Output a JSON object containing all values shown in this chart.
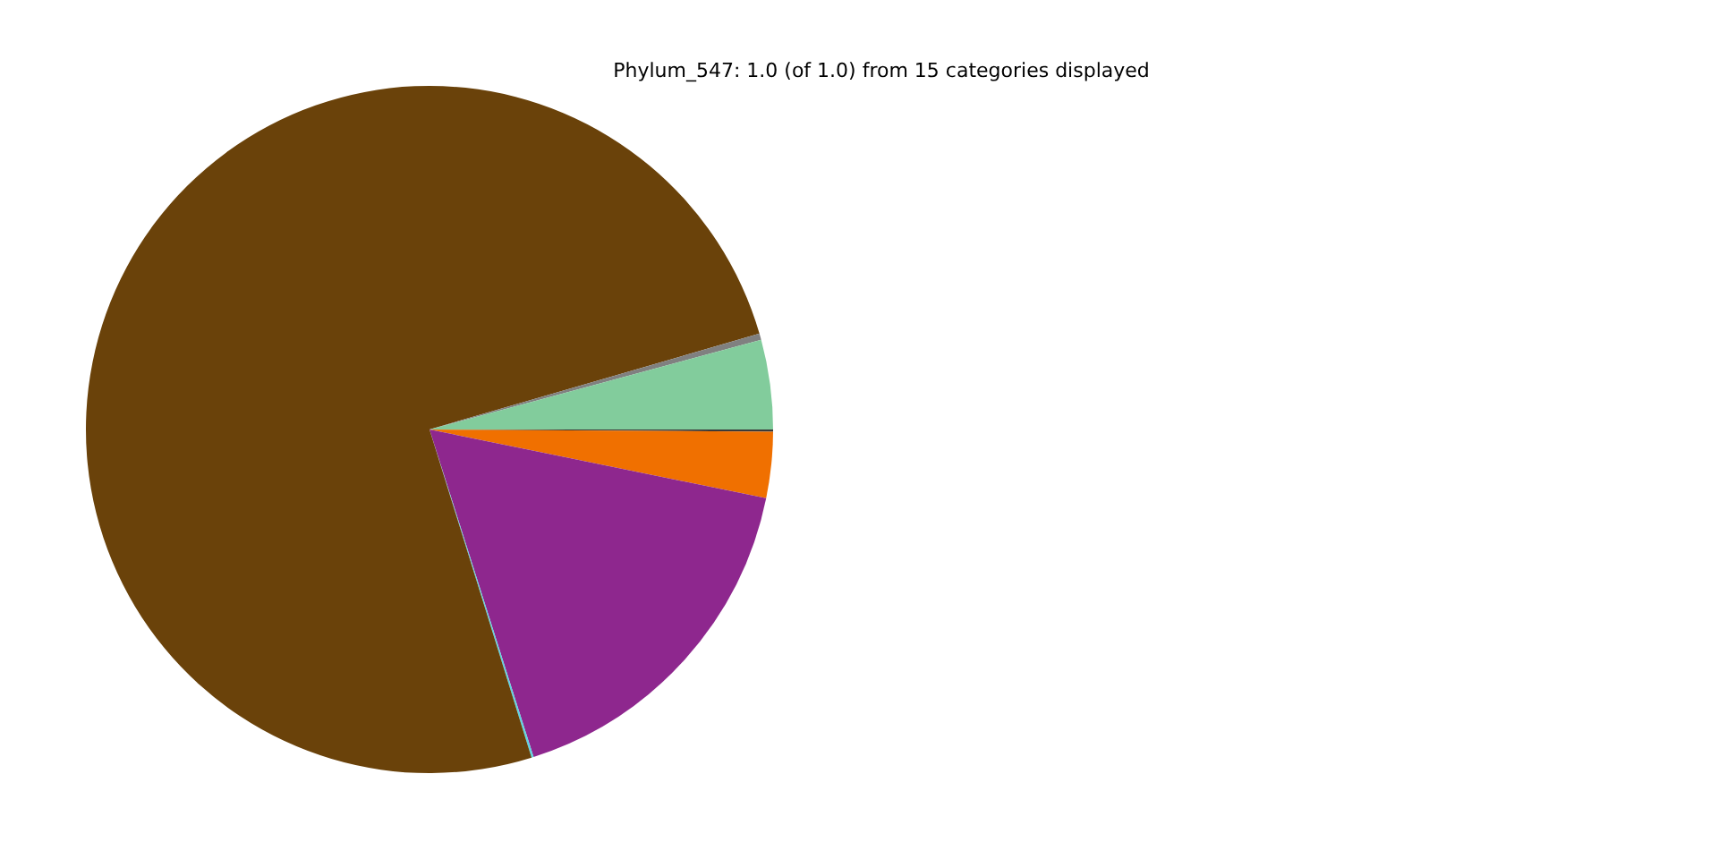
{
  "chart_data": {
    "type": "pie",
    "title": "Phylum_547: 1.0 (of 1.0) from 15 categories displayed",
    "categories": [
      null,
      null,
      null,
      null,
      null,
      null,
      null
    ],
    "values": [
      0.1,
      3.1,
      16.9,
      0.1,
      75.3,
      0.3,
      4.2
    ],
    "colors": [
      "#3a3a3a",
      "#f07000",
      "#8e278e",
      "#5fd3e0",
      "#6a420a",
      "#808080",
      "#82cc9c"
    ],
    "legend": false
  }
}
